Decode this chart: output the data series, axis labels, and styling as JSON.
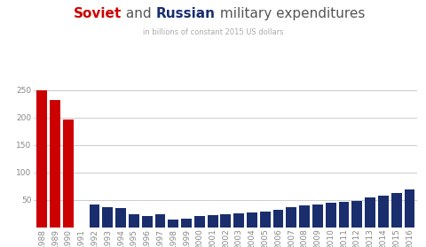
{
  "years": [
    1988,
    1989,
    1990,
    1991,
    1992,
    1993,
    1994,
    1995,
    1996,
    1997,
    1998,
    1999,
    2000,
    2001,
    2002,
    2003,
    2004,
    2005,
    2006,
    2007,
    2008,
    2009,
    2010,
    2011,
    2012,
    2013,
    2014,
    2015,
    2016
  ],
  "values": [
    250,
    232,
    196,
    0,
    42,
    37,
    35,
    23,
    21,
    23,
    14,
    15,
    20,
    22,
    24,
    26,
    27,
    29,
    32,
    36,
    40,
    42,
    45,
    46,
    48,
    55,
    58,
    63,
    69
  ],
  "colors": [
    "#cc0000",
    "#cc0000",
    "#cc0000",
    "#cc0000",
    "#1a2e6e",
    "#1a2e6e",
    "#1a2e6e",
    "#1a2e6e",
    "#1a2e6e",
    "#1a2e6e",
    "#1a2e6e",
    "#1a2e6e",
    "#1a2e6e",
    "#1a2e6e",
    "#1a2e6e",
    "#1a2e6e",
    "#1a2e6e",
    "#1a2e6e",
    "#1a2e6e",
    "#1a2e6e",
    "#1a2e6e",
    "#1a2e6e",
    "#1a2e6e",
    "#1a2e6e",
    "#1a2e6e",
    "#1a2e6e",
    "#1a2e6e",
    "#1a2e6e",
    "#1a2e6e"
  ],
  "subtitle": "in billions of constant 2015 US dollars",
  "ylim": [
    0,
    270
  ],
  "yticks": [
    50,
    100,
    150,
    200,
    250
  ],
  "bg_color": "#ffffff",
  "grid_color": "#cccccc",
  "soviet_color": "#cc0000",
  "russian_color": "#1a2e6e",
  "tick_color": "#888888",
  "title_gray_color": "#555555",
  "subtitle_color": "#aaaaaa",
  "title_fs": 11,
  "subtitle_fs": 6,
  "tick_fs": 6.5,
  "bar_width": 0.8
}
